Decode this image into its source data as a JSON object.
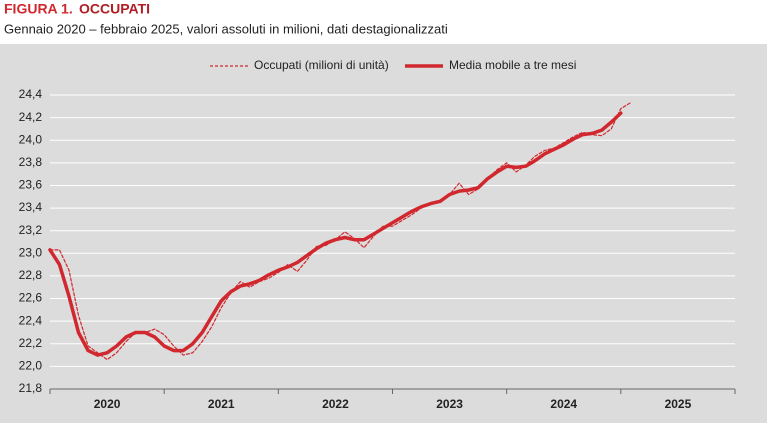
{
  "chart_data": {
    "type": "line",
    "title_prefix": "FIGURA 1.",
    "title": "OCCUPATI",
    "subtitle": "Gennaio 2020 – febbraio 2025, valori assoluti in milioni, dati destagionalizzati",
    "categories": [
      "2020",
      null,
      null,
      null,
      null,
      null,
      null,
      null,
      null,
      null,
      null,
      null,
      "2021",
      null,
      null,
      null,
      null,
      null,
      null,
      null,
      null,
      null,
      null,
      null,
      "2022",
      null,
      null,
      null,
      null,
      null,
      null,
      null,
      null,
      null,
      null,
      null,
      "2023",
      null,
      null,
      null,
      null,
      null,
      null,
      null,
      null,
      null,
      null,
      null,
      "2024",
      null,
      null,
      null,
      null,
      null,
      null,
      null,
      null,
      null,
      null,
      null,
      "2025",
      null
    ],
    "series": [
      {
        "name": "Occupati (milioni di unità)",
        "color": "#d0282e",
        "style": "dashed",
        "values": [
          23.03,
          23.03,
          22.85,
          22.45,
          22.18,
          22.12,
          22.06,
          22.12,
          22.22,
          22.3,
          22.3,
          22.33,
          22.28,
          22.18,
          22.1,
          22.12,
          22.22,
          22.35,
          22.52,
          22.65,
          22.75,
          22.7,
          22.75,
          22.78,
          22.83,
          22.9,
          22.84,
          22.94,
          23.06,
          23.07,
          23.12,
          23.19,
          23.13,
          23.05,
          23.15,
          23.24,
          23.24,
          23.29,
          23.34,
          23.4,
          23.43,
          23.46,
          23.52,
          23.62,
          23.52,
          23.57,
          23.66,
          23.74,
          23.8,
          23.72,
          23.78,
          23.86,
          23.91,
          23.93,
          23.98,
          24.03,
          24.07,
          24.05,
          24.04,
          24.1,
          24.28,
          24.33
        ]
      },
      {
        "name": "Media mobile a tre mesi",
        "color": "#d0282e",
        "style": "solid",
        "values": [
          23.03,
          22.9,
          22.62,
          22.3,
          22.14,
          22.1,
          22.12,
          22.18,
          22.26,
          22.3,
          22.3,
          22.26,
          22.18,
          22.14,
          22.14,
          22.2,
          22.3,
          22.44,
          22.58,
          22.66,
          22.71,
          22.73,
          22.76,
          22.81,
          22.85,
          22.88,
          22.92,
          22.98,
          23.04,
          23.09,
          23.12,
          23.14,
          23.12,
          23.12,
          23.17,
          23.22,
          23.27,
          23.32,
          23.37,
          23.41,
          23.44,
          23.46,
          23.52,
          23.55,
          23.56,
          23.58,
          23.66,
          23.72,
          23.77,
          23.76,
          23.77,
          23.82,
          23.88,
          23.92,
          23.96,
          24.01,
          24.05,
          24.06,
          24.09,
          24.16,
          24.24,
          null
        ]
      }
    ],
    "ylim": [
      21.8,
      24.4
    ],
    "yticks": [
      {
        "value": 21.8,
        "label": "21,8"
      },
      {
        "value": 22.0,
        "label": "22,0"
      },
      {
        "value": 22.2,
        "label": "22,2"
      },
      {
        "value": 22.4,
        "label": "22,4"
      },
      {
        "value": 22.6,
        "label": "22,6"
      },
      {
        "value": 22.8,
        "label": "22,8"
      },
      {
        "value": 23.0,
        "label": "23,0"
      },
      {
        "value": 23.2,
        "label": "23,2"
      },
      {
        "value": 23.4,
        "label": "23,4"
      },
      {
        "value": 23.6,
        "label": "23,6"
      },
      {
        "value": 23.8,
        "label": "23,8"
      },
      {
        "value": 24.0,
        "label": "24,0"
      },
      {
        "value": 24.2,
        "label": "24,2"
      },
      {
        "value": 24.4,
        "label": "24,4"
      }
    ],
    "grid": true,
    "legend": "top"
  }
}
